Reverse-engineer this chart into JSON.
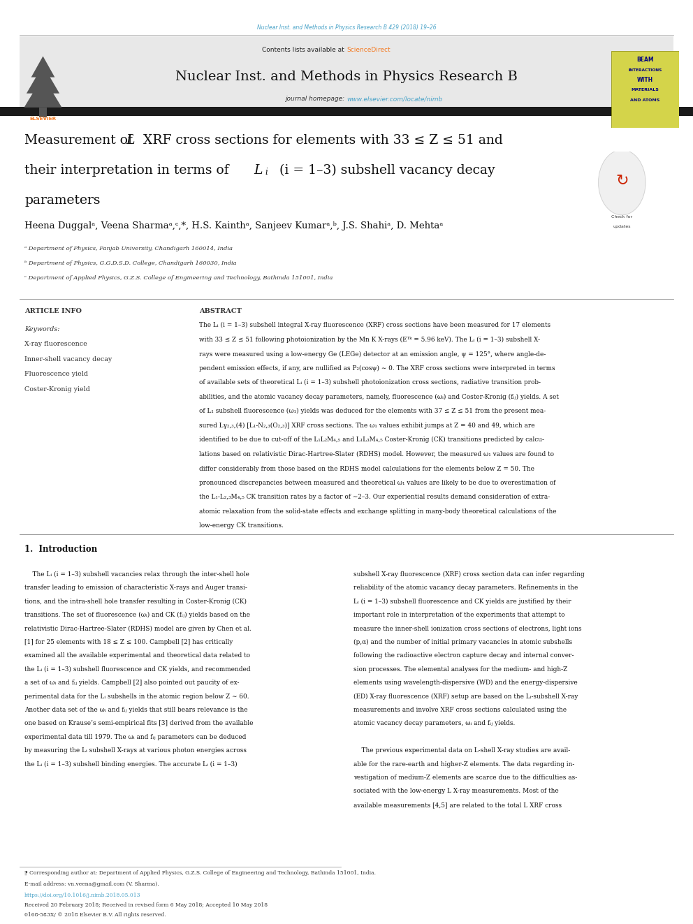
{
  "page_width": 9.92,
  "page_height": 13.23,
  "bg_color": "#ffffff",
  "journal_ref": "Nuclear Inst. and Methods in Physics Research B 429 (2018) 19–26",
  "journal_ref_color": "#4aa3c8",
  "contents_text": "Contents lists available at ",
  "sciencedirect_text": "ScienceDirect",
  "sciencedirect_color": "#f47920",
  "journal_title": "Nuclear Inst. and Methods in Physics Research B",
  "journal_homepage": "journal homepage: ",
  "journal_url": "www.elsevier.com/locate/nimb",
  "journal_url_color": "#4aa3c8",
  "header_bg": "#e8e8e8",
  "black_bar_color": "#1a1a1a",
  "article_info_header": "ARTICLE INFO",
  "abstract_header": "ABSTRACT",
  "keywords_label": "Keywords:",
  "keywords": [
    "X-ray fluorescence",
    "Inner-shell vacancy decay",
    "Fluorescence yield",
    "Coster-Kronig yield"
  ],
  "affil_a": "ᵃ Department of Physics, Panjab University, Chandigarh 160014, India",
  "affil_b": "ᵇ Department of Physics, G.G.D.S.D. College, Chandigarh 160030, India",
  "affil_c": "ᶜ Department of Applied Physics, G.Z.S. College of Engineering and Technology, Bathinda 151001, India",
  "intro_header": "1.  Introduction",
  "footnote_star": "⁋ Corresponding author at: Department of Applied Physics, G.Z.S. College of Engineering and Technology, Bathinda 151001, India.",
  "footnote_email": "E-mail address: vn.veena@gmail.com (V. Sharma).",
  "doi_text": "https://doi.org/10.1016/j.nimb.2018.05.013",
  "received_text": "Received 20 February 2018; Received in revised form 6 May 2018; Accepted 10 May 2018",
  "copyright_text": "0168-583X/ © 2018 Elsevier B.V. All rights reserved.",
  "elsevier_orange": "#f47920",
  "abstract_lines": [
    "The Lᵢ (i = 1–3) subshell integral X-ray fluorescence (XRF) cross sections have been measured for 17 elements",
    "with 33 ≤ Z ≤ 51 following photoionization by the Mn K X-rays (Eᵀᵏ = 5.96 keV). The Lᵢ (i = 1–3) subshell X-",
    "rays were measured using a low-energy Ge (LEGe) detector at an emission angle, ψ = 125°, where angle-de-",
    "pendent emission effects, if any, are nullified as P₂(cosψ) ∼ 0. The XRF cross sections were interpreted in terms",
    "of available sets of theoretical Lᵢ (i = 1–3) subshell photoionization cross sections, radiative transition prob-",
    "abilities, and the atomic vacancy decay parameters, namely, fluorescence (ωᵢ) and Coster-Kronig (fᵢⱼ) yields. A set",
    "of L₁ subshell fluorescence (ω₁) yields was deduced for the elements with 37 ≤ Z ≤ 51 from the present mea-",
    "sured Lγ₂,₃,(4) [L₁-N₂,₃(O₂,₃)] XRF cross sections. The ω₁ values exhibit jumps at Z = 40 and 49, which are",
    "identified to be due to cut-off of the L₁L₂M₄,₅ and L₁L₃M₄,₅ Coster-Kronig (CK) transitions predicted by calcu-",
    "lations based on relativistic Dirac-Hartree-Slater (RDHS) model. However, the measured ω₁ values are found to",
    "differ considerably from those based on the RDHS model calculations for the elements below Z = 50. The",
    "pronounced discrepancies between measured and theoretical ω₁ values are likely to be due to overestimation of",
    "the L₁-L₂,₃M₄,₅ CK transition rates by a factor of ∼2–3. Our experiential results demand consideration of extra-",
    "atomic relaxation from the solid-state effects and exchange splitting in many-body theoretical calculations of the",
    "low-energy CK transitions."
  ],
  "intro_col1_lines": [
    "    The Lᵢ (i = 1–3) subshell vacancies relax through the inter-shell hole",
    "transfer leading to emission of characteristic X-rays and Auger transi-",
    "tions, and the intra-shell hole transfer resulting in Coster-Kronig (CK)",
    "transitions. The set of fluorescence (ωᵢ) and CK (fᵢⱼ) yields based on the",
    "relativistic Dirac-Hartree-Slater (RDHS) model are given by Chen et al.",
    "[1] for 25 elements with 18 ≤ Z ≤ 100. Campbell [2] has critically",
    "examined all the available experimental and theoretical data related to",
    "the Lᵢ (i = 1–3) subshell fluorescence and CK yields, and recommended",
    "a set of ωᵢ and fᵢⱼ yields. Campbell [2] also pointed out paucity of ex-",
    "perimental data for the Lᵢ subshells in the atomic region below Z ∼ 60.",
    "Another data set of the ωᵢ and fᵢⱼ yields that still bears relevance is the",
    "one based on Krause’s semi-empirical fits [3] derived from the available",
    "experimental data till 1979. The ωᵢ and fᵢⱼ parameters can be deduced",
    "by measuring the Lᵢ subshell X-rays at various photon energies across",
    "the Lᵢ (i = 1–3) subshell binding energies. The accurate Lᵢ (i = 1–3)"
  ],
  "intro_col2_lines": [
    "subshell X-ray fluorescence (XRF) cross section data can infer regarding",
    "reliability of the atomic vacancy decay parameters. Refinements in the",
    "Lᵢ (i = 1–3) subshell fluorescence and CK yields are justified by their",
    "important role in interpretation of the experiments that attempt to",
    "measure the inner-shell ionization cross sections of electrons, light ions",
    "(p,α) and the number of initial primary vacancies in atomic subshells",
    "following the radioactive electron capture decay and internal conver-",
    "sion processes. The elemental analyses for the medium- and high-Z",
    "elements using wavelength-dispersive (WD) and the energy-dispersive",
    "(ED) X-ray fluorescence (XRF) setup are based on the Lᵢ-subshell X-ray",
    "measurements and involve XRF cross sections calculated using the",
    "atomic vacancy decay parameters, ωᵢ and fᵢⱼ yields.",
    "",
    "    The previous experimental data on L-shell X-ray studies are avail-",
    "able for the rare-earth and higher-Z elements. The data regarding in-",
    "vestigation of medium-Z elements are scarce due to the difficulties as-",
    "sociated with the low-energy L X-ray measurements. Most of the",
    "available measurements [4,5] are related to the total L XRF cross"
  ]
}
